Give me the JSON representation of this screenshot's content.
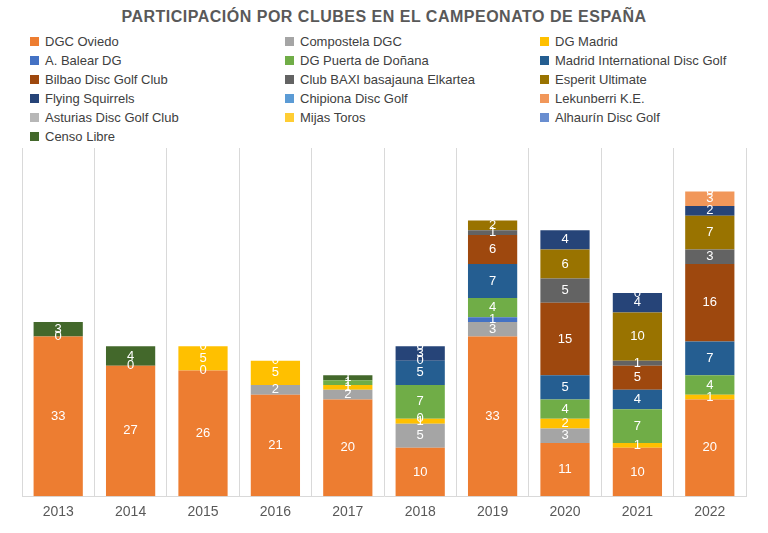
{
  "chart_data": {
    "type": "bar",
    "title": "PARTICIPACIÓN POR CLUBES EN EL CAMPEONATO DE ESPAÑA",
    "categories": [
      "2013",
      "2014",
      "2015",
      "2016",
      "2017",
      "2018",
      "2019",
      "2020",
      "2021",
      "2022"
    ],
    "stacked": true,
    "data_labels": true,
    "tick_labels": "x",
    "grid": "x",
    "legend": "top",
    "ylim": [
      0,
      72
    ],
    "series": [
      {
        "name": "DGC Oviedo",
        "color": "#ED7D31",
        "values": [
          33,
          27,
          26,
          21,
          20,
          10,
          33,
          11,
          10,
          20
        ]
      },
      {
        "name": "Compostela DGC",
        "color": "#A5A5A5",
        "values": [
          0,
          0,
          0,
          2,
          2,
          5,
          3,
          3,
          null,
          null
        ]
      },
      {
        "name": "DG Madrid",
        "color": "#FFC000",
        "values": [
          null,
          null,
          5,
          5,
          1,
          1,
          null,
          2,
          1,
          1
        ]
      },
      {
        "name": "A. Balear DG",
        "color": "#4472C4",
        "values": [
          null,
          null,
          0,
          0,
          null,
          0,
          1,
          null,
          null,
          null
        ]
      },
      {
        "name": "DG Puerta de Doñana",
        "color": "#70AD47",
        "values": [
          null,
          null,
          null,
          null,
          1,
          7,
          4,
          4,
          7,
          4
        ]
      },
      {
        "name": "Madrid International Disc Golf",
        "color": "#255E91",
        "values": [
          null,
          null,
          null,
          null,
          null,
          5,
          7,
          5,
          4,
          7
        ]
      },
      {
        "name": "Bilbao Disc Golf Club",
        "color": "#9E480E",
        "values": [
          null,
          null,
          null,
          null,
          null,
          0,
          6,
          15,
          5,
          16
        ]
      },
      {
        "name": "Club BAXI basajauna Elkartea",
        "color": "#636363",
        "values": [
          null,
          null,
          null,
          null,
          null,
          null,
          1,
          5,
          1,
          3
        ]
      },
      {
        "name": "Esperit Ultimate",
        "color": "#997300",
        "values": [
          null,
          null,
          null,
          null,
          null,
          null,
          2,
          6,
          10,
          7
        ]
      },
      {
        "name": "Flying Squirrels",
        "color": "#264478",
        "values": [
          null,
          null,
          null,
          null,
          null,
          3,
          null,
          4,
          4,
          2
        ]
      },
      {
        "name": "Chipiona Disc Golf",
        "color": "#5B9BD5",
        "values": [
          null,
          null,
          null,
          null,
          null,
          0,
          null,
          null,
          0,
          null
        ]
      },
      {
        "name": "Lekunberri K.E.",
        "color": "#F1975A",
        "values": [
          null,
          null,
          null,
          null,
          null,
          null,
          null,
          null,
          null,
          3
        ]
      },
      {
        "name": "Asturias Disc Golf Club",
        "color": "#B7B7B7",
        "values": [
          null,
          null,
          null,
          null,
          null,
          null,
          null,
          null,
          null,
          0
        ]
      },
      {
        "name": "Mijas Toros",
        "color": "#FFCD33",
        "values": [
          null,
          null,
          null,
          null,
          null,
          null,
          null,
          null,
          null,
          null
        ]
      },
      {
        "name": "Alhaurín Disc Golf",
        "color": "#698ED0",
        "values": [
          null,
          null,
          null,
          null,
          null,
          null,
          null,
          null,
          null,
          null
        ]
      },
      {
        "name": "Censo Libre",
        "color": "#43682B",
        "values": [
          3,
          4,
          null,
          null,
          1,
          null,
          null,
          null,
          null,
          null
        ]
      }
    ]
  }
}
